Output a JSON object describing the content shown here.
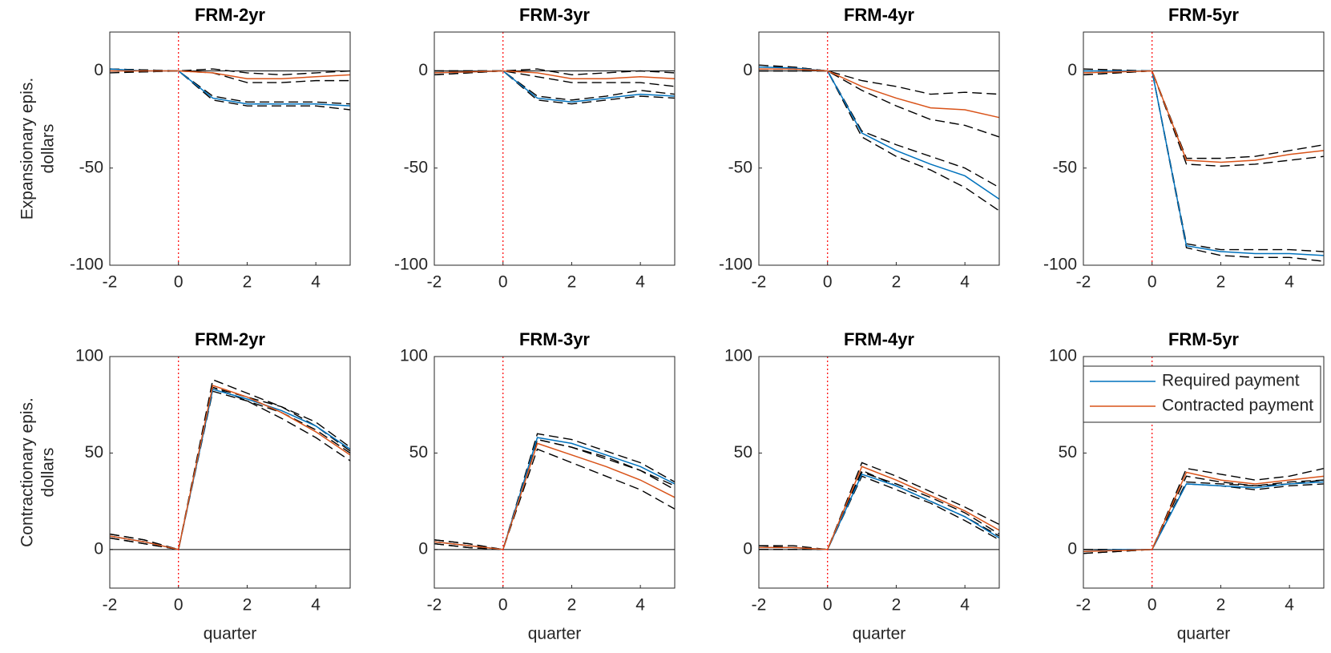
{
  "chart_data": [
    {
      "type": "line",
      "title": "FRM-2yr",
      "ylabel": [
        "Expansionary epis.",
        "dollars"
      ],
      "x": [
        -2,
        -1,
        0,
        1,
        2,
        3,
        4,
        5
      ],
      "xlim": [
        -2,
        5
      ],
      "xticks": [
        -2,
        0,
        2,
        4
      ],
      "ylim": [
        -100,
        20
      ],
      "yticks": [
        -100,
        -50,
        0
      ],
      "vline": 0,
      "hline": 0,
      "series": [
        {
          "color": "#000000",
          "dash": true,
          "values": [
            1,
            0.5,
            0,
            -13,
            -16,
            -16,
            -16,
            -17
          ]
        },
        {
          "color": "#000000",
          "dash": true,
          "values": [
            0,
            -0.5,
            0,
            -15,
            -18,
            -18,
            -18,
            -20
          ]
        },
        {
          "color": "#000000",
          "dash": true,
          "values": [
            1,
            0.5,
            0,
            1,
            -1,
            -2,
            -1,
            0
          ]
        },
        {
          "color": "#000000",
          "dash": true,
          "values": [
            -1,
            -0.5,
            0,
            -1,
            -6,
            -6,
            -5,
            -5
          ]
        },
        {
          "name": "Required payment",
          "color": "#0072BD",
          "values": [
            1,
            0,
            0,
            -14,
            -17,
            -17,
            -17,
            -18
          ]
        },
        {
          "name": "Contracted payment",
          "color": "#D95319",
          "values": [
            0,
            0,
            0,
            -1,
            -4,
            -4,
            -3,
            -2
          ]
        }
      ]
    },
    {
      "type": "line",
      "title": "FRM-3yr",
      "x": [
        -2,
        -1,
        0,
        1,
        2,
        3,
        4,
        5
      ],
      "xlim": [
        -2,
        5
      ],
      "xticks": [
        -2,
        0,
        2,
        4
      ],
      "ylim": [
        -100,
        20
      ],
      "yticks": [
        -100,
        -50,
        0
      ],
      "vline": 0,
      "hline": 0,
      "series": [
        {
          "color": "#000000",
          "dash": true,
          "values": [
            0,
            0,
            0,
            -13,
            -15,
            -13,
            -10,
            -12
          ]
        },
        {
          "color": "#000000",
          "dash": true,
          "values": [
            -2,
            -1,
            0,
            -15,
            -17,
            -15,
            -13,
            -14
          ]
        },
        {
          "color": "#000000",
          "dash": true,
          "values": [
            0,
            0,
            0,
            1,
            -2,
            -1,
            0,
            -1
          ]
        },
        {
          "color": "#000000",
          "dash": true,
          "values": [
            -2,
            -1,
            0,
            -3,
            -6,
            -6,
            -6,
            -8
          ]
        },
        {
          "name": "Required payment",
          "color": "#0072BD",
          "values": [
            -1,
            -0.5,
            0,
            -14,
            -16,
            -14,
            -12,
            -13
          ]
        },
        {
          "name": "Contracted payment",
          "color": "#D95319",
          "values": [
            -1,
            -0.5,
            0,
            -1,
            -4,
            -4,
            -3,
            -4
          ]
        }
      ]
    },
    {
      "type": "line",
      "title": "FRM-4yr",
      "x": [
        -2,
        -1,
        0,
        1,
        2,
        3,
        4,
        5
      ],
      "xlim": [
        -2,
        5
      ],
      "xticks": [
        -2,
        0,
        2,
        4
      ],
      "ylim": [
        -100,
        20
      ],
      "yticks": [
        -100,
        -50,
        0
      ],
      "vline": 0,
      "hline": 0,
      "series": [
        {
          "color": "#000000",
          "dash": true,
          "values": [
            3,
            2,
            0,
            -31,
            -38,
            -44,
            -50,
            -60
          ]
        },
        {
          "color": "#000000",
          "dash": true,
          "values": [
            0,
            0,
            0,
            -34,
            -44,
            -51,
            -60,
            -72
          ]
        },
        {
          "color": "#000000",
          "dash": true,
          "values": [
            2,
            2,
            0,
            -5,
            -8,
            -12,
            -11,
            -12
          ]
        },
        {
          "color": "#000000",
          "dash": true,
          "values": [
            0,
            0,
            0,
            -10,
            -18,
            -25,
            -28,
            -34
          ]
        },
        {
          "name": "Required payment",
          "color": "#0072BD",
          "values": [
            2,
            1.5,
            0,
            -32,
            -41,
            -48,
            -54,
            -66
          ]
        },
        {
          "name": "Contracted payment",
          "color": "#D95319",
          "values": [
            1,
            1,
            0,
            -8,
            -14,
            -19,
            -20,
            -24
          ]
        }
      ]
    },
    {
      "type": "line",
      "title": "FRM-5yr",
      "x": [
        -2,
        -1,
        0,
        1,
        2,
        3,
        4,
        5
      ],
      "xlim": [
        -2,
        5
      ],
      "xticks": [
        -2,
        0,
        2,
        4
      ],
      "ylim": [
        -100,
        20
      ],
      "yticks": [
        -100,
        -50,
        0
      ],
      "vline": 0,
      "hline": 0,
      "series": [
        {
          "color": "#000000",
          "dash": true,
          "values": [
            1,
            0.5,
            0,
            -89,
            -92,
            -92,
            -92,
            -93
          ]
        },
        {
          "color": "#000000",
          "dash": true,
          "values": [
            -2,
            -1,
            0,
            -91,
            -95,
            -96,
            -96,
            -98
          ]
        },
        {
          "color": "#000000",
          "dash": true,
          "values": [
            0,
            0,
            0,
            -45,
            -45,
            -44,
            -41,
            -38
          ]
        },
        {
          "color": "#000000",
          "dash": true,
          "values": [
            -2,
            -1,
            0,
            -48,
            -49,
            -48,
            -46,
            -44
          ]
        },
        {
          "name": "Required payment",
          "color": "#0072BD",
          "values": [
            0,
            0,
            0,
            -90,
            -93,
            -94,
            -94,
            -95
          ]
        },
        {
          "name": "Contracted payment",
          "color": "#D95319",
          "values": [
            -1,
            -0.5,
            0,
            -46,
            -47,
            -46,
            -43,
            -41
          ]
        }
      ]
    },
    {
      "type": "line",
      "title": "FRM-2yr",
      "ylabel": [
        "Contractionary epis.",
        "dollars"
      ],
      "xlabel": "quarter",
      "x": [
        -2,
        -1,
        0,
        1,
        2,
        3,
        4,
        5
      ],
      "xlim": [
        -2,
        5
      ],
      "xticks": [
        -2,
        0,
        2,
        4
      ],
      "ylim": [
        -20,
        100
      ],
      "yticks": [
        0,
        50,
        100
      ],
      "vline": 0,
      "hline": 0,
      "series": [
        {
          "color": "#000000",
          "dash": true,
          "values": [
            8,
            5,
            0,
            84,
            79,
            74,
            66,
            53
          ]
        },
        {
          "color": "#000000",
          "dash": true,
          "values": [
            6,
            3,
            0,
            82,
            77,
            71,
            62,
            50
          ]
        },
        {
          "color": "#000000",
          "dash": true,
          "values": [
            8,
            5,
            0,
            88,
            81,
            74,
            64,
            51
          ]
        },
        {
          "color": "#000000",
          "dash": true,
          "values": [
            6,
            3,
            0,
            84,
            77,
            68,
            58,
            46
          ]
        },
        {
          "name": "Required payment",
          "color": "#0072BD",
          "values": [
            7,
            4,
            0,
            83,
            78,
            72,
            64,
            52
          ]
        },
        {
          "name": "Contracted payment",
          "color": "#D95319",
          "values": [
            7,
            4,
            0,
            85,
            79,
            71,
            61,
            49
          ]
        }
      ]
    },
    {
      "type": "line",
      "title": "FRM-3yr",
      "xlabel": "quarter",
      "x": [
        -2,
        -1,
        0,
        1,
        2,
        3,
        4,
        5
      ],
      "xlim": [
        -2,
        5
      ],
      "xticks": [
        -2,
        0,
        2,
        4
      ],
      "ylim": [
        -20,
        100
      ],
      "yticks": [
        0,
        50,
        100
      ],
      "vline": 0,
      "hline": 0,
      "series": [
        {
          "color": "#000000",
          "dash": true,
          "values": [
            5,
            3,
            0,
            60,
            57,
            51,
            45,
            35
          ]
        },
        {
          "color": "#000000",
          "dash": true,
          "values": [
            3,
            1,
            0,
            57,
            53,
            47,
            41,
            31
          ]
        },
        {
          "color": "#000000",
          "dash": true,
          "values": [
            5,
            3,
            0,
            57,
            53,
            48,
            41,
            33
          ]
        },
        {
          "color": "#000000",
          "dash": true,
          "values": [
            3,
            1,
            0,
            52,
            45,
            38,
            31,
            21
          ]
        },
        {
          "name": "Required payment",
          "color": "#0072BD",
          "values": [
            4,
            2,
            0,
            58,
            55,
            49,
            43,
            34
          ]
        },
        {
          "name": "Contracted payment",
          "color": "#D95319",
          "values": [
            4,
            2,
            0,
            55,
            49,
            43,
            36,
            27
          ]
        }
      ]
    },
    {
      "type": "line",
      "title": "FRM-4yr",
      "xlabel": "quarter",
      "x": [
        -2,
        -1,
        0,
        1,
        2,
        3,
        4,
        5
      ],
      "xlim": [
        -2,
        5
      ],
      "xticks": [
        -2,
        0,
        2,
        4
      ],
      "ylim": [
        -20,
        100
      ],
      "yticks": [
        0,
        50,
        100
      ],
      "vline": 0,
      "hline": 0,
      "series": [
        {
          "color": "#000000",
          "dash": true,
          "values": [
            2,
            1,
            0,
            40,
            34,
            27,
            19,
            8
          ]
        },
        {
          "color": "#000000",
          "dash": true,
          "values": [
            0,
            0,
            0,
            38,
            31,
            24,
            15,
            5
          ]
        },
        {
          "color": "#000000",
          "dash": true,
          "values": [
            2,
            2,
            0,
            45,
            38,
            30,
            22,
            13
          ]
        },
        {
          "color": "#000000",
          "dash": true,
          "values": [
            0,
            0,
            0,
            41,
            33,
            25,
            17,
            7
          ]
        },
        {
          "name": "Required payment",
          "color": "#0072BD",
          "values": [
            1,
            1,
            0,
            39,
            33,
            25,
            17,
            6
          ]
        },
        {
          "name": "Contracted payment",
          "color": "#D95319",
          "values": [
            1,
            1,
            0,
            43,
            36,
            28,
            20,
            10
          ]
        }
      ]
    },
    {
      "type": "line",
      "title": "FRM-5yr",
      "xlabel": "quarter",
      "legend": "upper right",
      "x": [
        -2,
        -1,
        0,
        1,
        2,
        3,
        4,
        5
      ],
      "xlim": [
        -2,
        5
      ],
      "xticks": [
        -2,
        0,
        2,
        4
      ],
      "ylim": [
        -20,
        100
      ],
      "yticks": [
        0,
        50,
        100
      ],
      "vline": 0,
      "hline": 0,
      "series": [
        {
          "color": "#000000",
          "dash": true,
          "values": [
            0,
            0,
            0,
            35,
            34,
            33,
            35,
            36
          ]
        },
        {
          "color": "#000000",
          "dash": true,
          "values": [
            -2,
            -1,
            0,
            34,
            33,
            31,
            33,
            34
          ]
        },
        {
          "color": "#000000",
          "dash": true,
          "values": [
            0,
            0,
            0,
            42,
            39,
            36,
            38,
            42
          ]
        },
        {
          "color": "#000000",
          "dash": true,
          "values": [
            -2,
            -1,
            0,
            38,
            35,
            33,
            34,
            36
          ]
        },
        {
          "name": "Required payment",
          "color": "#0072BD",
          "values": [
            -1,
            0,
            0,
            34,
            33,
            32,
            34,
            35
          ]
        },
        {
          "name": "Contracted payment",
          "color": "#D95319",
          "values": [
            -1,
            -0.5,
            0,
            40,
            36,
            34,
            36,
            38
          ]
        }
      ]
    }
  ]
}
